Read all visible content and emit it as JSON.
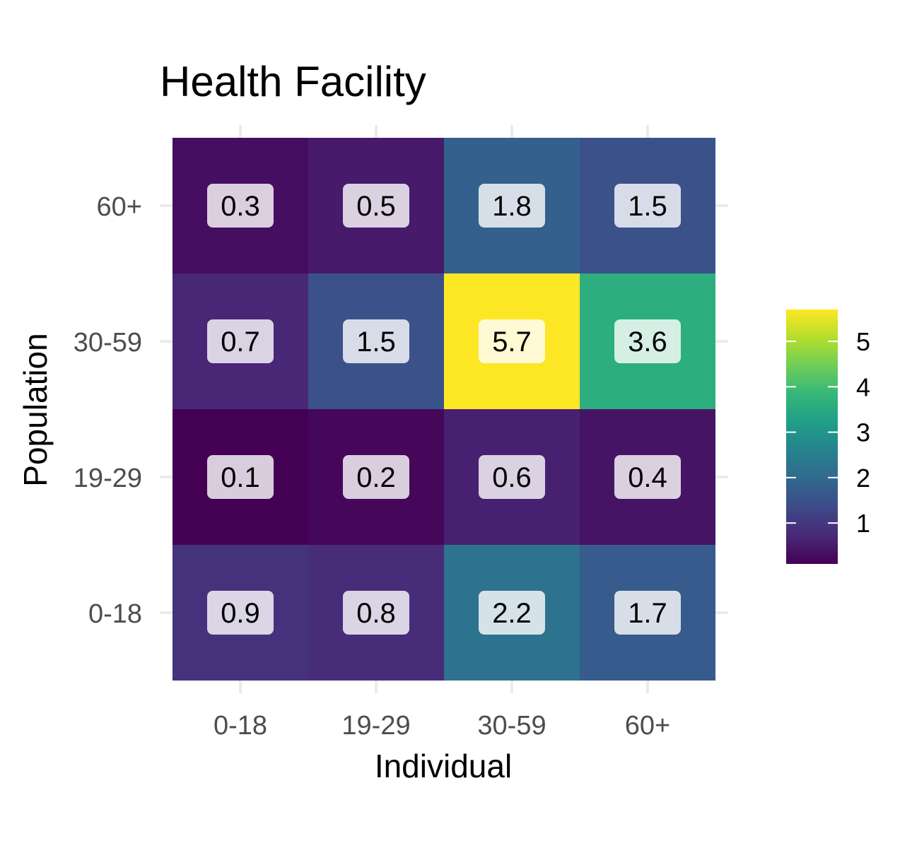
{
  "chart_data": {
    "type": "heatmap",
    "title": "Health Facility",
    "xlabel": "Individual",
    "ylabel": "Population",
    "x_categories": [
      "0-18",
      "19-29",
      "30-59",
      "60+"
    ],
    "y_categories": [
      "0-18",
      "19-29",
      "30-59",
      "60+"
    ],
    "cells": [
      {
        "x": "0-18",
        "y": "60+",
        "value": 0.3,
        "label": "0.3"
      },
      {
        "x": "19-29",
        "y": "60+",
        "value": 0.5,
        "label": "0.5"
      },
      {
        "x": "30-59",
        "y": "60+",
        "value": 1.8,
        "label": "1.8"
      },
      {
        "x": "60+",
        "y": "60+",
        "value": 1.5,
        "label": "1.5"
      },
      {
        "x": "0-18",
        "y": "30-59",
        "value": 0.7,
        "label": "0.7"
      },
      {
        "x": "19-29",
        "y": "30-59",
        "value": 1.5,
        "label": "1.5"
      },
      {
        "x": "30-59",
        "y": "30-59",
        "value": 5.7,
        "label": "5.7"
      },
      {
        "x": "60+",
        "y": "30-59",
        "value": 3.6,
        "label": "3.6"
      },
      {
        "x": "0-18",
        "y": "19-29",
        "value": 0.1,
        "label": "0.1"
      },
      {
        "x": "19-29",
        "y": "19-29",
        "value": 0.2,
        "label": "0.2"
      },
      {
        "x": "30-59",
        "y": "19-29",
        "value": 0.6,
        "label": "0.6"
      },
      {
        "x": "60+",
        "y": "19-29",
        "value": 0.4,
        "label": "0.4"
      },
      {
        "x": "0-18",
        "y": "0-18",
        "value": 0.9,
        "label": "0.9"
      },
      {
        "x": "19-29",
        "y": "0-18",
        "value": 0.8,
        "label": "0.8"
      },
      {
        "x": "30-59",
        "y": "0-18",
        "value": 2.2,
        "label": "2.2"
      },
      {
        "x": "60+",
        "y": "0-18",
        "value": 1.7,
        "label": "1.7"
      }
    ],
    "color_scale": {
      "name": "viridis",
      "min": 0.1,
      "max": 5.7,
      "stops": [
        "#440154",
        "#482878",
        "#3E4A89",
        "#31688E",
        "#26828E",
        "#1F9E89",
        "#35B779",
        "#6DCD59",
        "#B4DE2C",
        "#FDE725"
      ]
    },
    "legend": {
      "placement": "right",
      "ticks": [
        "1",
        "2",
        "3",
        "4",
        "5"
      ],
      "tick_values": [
        1,
        2,
        3,
        4,
        5
      ]
    },
    "grid": true
  }
}
